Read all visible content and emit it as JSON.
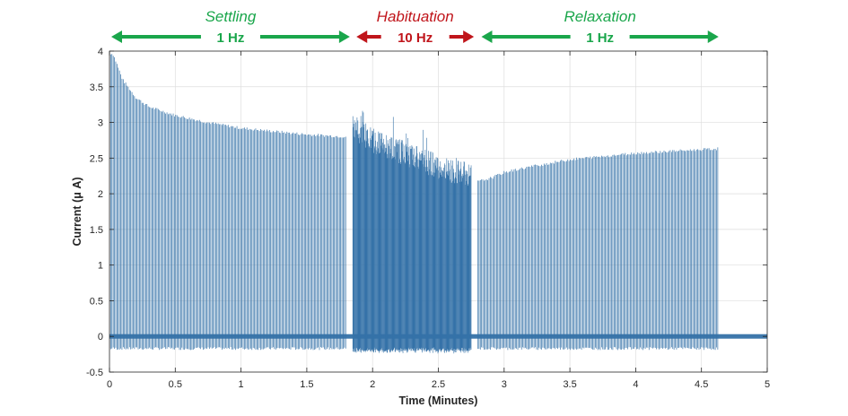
{
  "chart_data": {
    "type": "line",
    "xlabel": "Time (Minutes)",
    "ylabel": "Current (μ A)",
    "xlim": [
      0,
      5
    ],
    "ylim": [
      -0.5,
      4
    ],
    "xticks": [
      0,
      0.5,
      1,
      1.5,
      2,
      2.5,
      3,
      3.5,
      4,
      4.5,
      5
    ],
    "xtick_labels": [
      "0",
      "0.5",
      "1",
      "1.5",
      "2",
      "2.5",
      "3",
      "3.5",
      "4",
      "4.5",
      "5"
    ],
    "yticks": [
      -0.5,
      0,
      0.5,
      1,
      1.5,
      2,
      2.5,
      3,
      3.5,
      4
    ],
    "ytick_labels": [
      "-0.5",
      "0",
      "0.5",
      "1",
      "1.5",
      "2",
      "2.5",
      "3",
      "3.5",
      "4"
    ],
    "grid": true,
    "series_color": "#3572a8",
    "baseline": 0,
    "negative_peak": -0.17,
    "phases": [
      {
        "name": "Settling",
        "frequency": "1 Hz",
        "x_start": 0,
        "x_end": 1.8,
        "color": "#1aa64b",
        "envelope": {
          "x": [
            0,
            0.03,
            0.1,
            0.2,
            0.3,
            0.5,
            0.75,
            1.0,
            1.5,
            1.8
          ],
          "y": [
            3.98,
            3.95,
            3.6,
            3.35,
            3.22,
            3.1,
            3.0,
            2.92,
            2.83,
            2.8
          ]
        }
      },
      {
        "name": "Habituation",
        "frequency": "10 Hz",
        "x_start": 1.85,
        "x_end": 2.75,
        "color": "#c0151b",
        "envelope": {
          "x": [
            1.85,
            2.0,
            2.2,
            2.4,
            2.6,
            2.75
          ],
          "y": [
            2.95,
            2.75,
            2.6,
            2.45,
            2.32,
            2.27
          ]
        }
      },
      {
        "name": "Relaxation",
        "frequency": "1 Hz",
        "x_start": 2.8,
        "x_end": 4.63,
        "color": "#1aa64b",
        "envelope": {
          "x": [
            2.8,
            2.9,
            3.0,
            3.2,
            3.5,
            4.0,
            4.3,
            4.62
          ],
          "y": [
            2.17,
            2.22,
            2.3,
            2.38,
            2.48,
            2.57,
            2.6,
            2.63
          ]
        }
      }
    ]
  }
}
